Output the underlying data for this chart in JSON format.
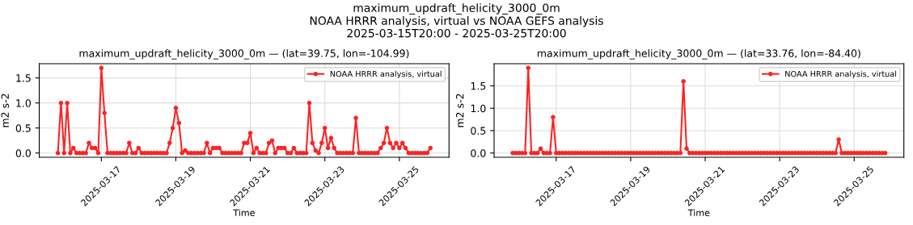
{
  "chart_data": [
    {
      "type": "line",
      "title": "maximum_updraft_helicity_3000_0m — (lat=39.75, lon=-104.99)",
      "xlabel": "Time",
      "ylabel": "m2 s-2",
      "annotations": [
        "maximum_updraft_helicity_3000_0m\nNOAA HRRR analysis, virtual vs NOAA GEFS analysis\n2025-03-15T20:00 - 2025-03-25T20:00"
      ],
      "x": [
        "2025-03-15T20:00",
        "2025-03-15T22:00",
        "2025-03-16T00:00",
        "2025-03-16T02:00",
        "2025-03-16T04:00",
        "2025-03-16T06:00",
        "2025-03-16T08:00",
        "2025-03-16T10:00",
        "2025-03-16T12:00",
        "2025-03-16T14:00",
        "2025-03-16T16:00",
        "2025-03-16T18:00",
        "2025-03-16T20:00",
        "2025-03-16T22:00",
        "2025-03-17T00:00",
        "2025-03-17T02:00",
        "2025-03-17T04:00",
        "2025-03-17T06:00",
        "2025-03-17T08:00",
        "2025-03-17T10:00",
        "2025-03-17T12:00",
        "2025-03-17T14:00",
        "2025-03-17T16:00",
        "2025-03-17T18:00",
        "2025-03-17T20:00",
        "2025-03-17T22:00",
        "2025-03-18T00:00",
        "2025-03-18T02:00",
        "2025-03-18T04:00",
        "2025-03-18T06:00",
        "2025-03-18T08:00",
        "2025-03-18T10:00",
        "2025-03-18T12:00",
        "2025-03-18T14:00",
        "2025-03-18T16:00",
        "2025-03-18T18:00",
        "2025-03-18T20:00",
        "2025-03-18T22:00",
        "2025-03-19T00:00",
        "2025-03-19T02:00",
        "2025-03-19T04:00",
        "2025-03-19T06:00",
        "2025-03-19T08:00",
        "2025-03-19T10:00",
        "2025-03-19T12:00",
        "2025-03-19T14:00",
        "2025-03-19T16:00",
        "2025-03-19T18:00",
        "2025-03-19T20:00",
        "2025-03-19T22:00",
        "2025-03-20T00:00",
        "2025-03-20T02:00",
        "2025-03-20T04:00",
        "2025-03-20T06:00",
        "2025-03-20T08:00",
        "2025-03-20T10:00",
        "2025-03-20T12:00",
        "2025-03-20T14:00",
        "2025-03-20T16:00",
        "2025-03-20T18:00",
        "2025-03-20T20:00",
        "2025-03-20T22:00",
        "2025-03-21T00:00",
        "2025-03-21T02:00",
        "2025-03-21T04:00",
        "2025-03-21T06:00",
        "2025-03-21T08:00",
        "2025-03-21T10:00",
        "2025-03-21T12:00",
        "2025-03-21T14:00",
        "2025-03-21T16:00",
        "2025-03-21T18:00",
        "2025-03-21T20:00",
        "2025-03-21T22:00",
        "2025-03-22T00:00",
        "2025-03-22T02:00",
        "2025-03-22T04:00",
        "2025-03-22T06:00",
        "2025-03-22T08:00",
        "2025-03-22T10:00",
        "2025-03-22T12:00",
        "2025-03-22T14:00",
        "2025-03-22T16:00",
        "2025-03-22T18:00",
        "2025-03-22T20:00",
        "2025-03-22T22:00",
        "2025-03-23T00:00",
        "2025-03-23T02:00",
        "2025-03-23T04:00",
        "2025-03-23T06:00",
        "2025-03-23T08:00",
        "2025-03-23T10:00",
        "2025-03-23T12:00",
        "2025-03-23T14:00",
        "2025-03-23T16:00",
        "2025-03-23T18:00",
        "2025-03-23T20:00",
        "2025-03-23T22:00",
        "2025-03-24T00:00",
        "2025-03-24T02:00",
        "2025-03-24T04:00",
        "2025-03-24T06:00",
        "2025-03-24T08:00",
        "2025-03-24T10:00",
        "2025-03-24T12:00",
        "2025-03-24T14:00",
        "2025-03-24T16:00",
        "2025-03-24T18:00",
        "2025-03-24T20:00",
        "2025-03-24T22:00",
        "2025-03-25T00:00",
        "2025-03-25T02:00",
        "2025-03-25T04:00",
        "2025-03-25T06:00",
        "2025-03-25T08:00",
        "2025-03-25T10:00",
        "2025-03-25T12:00",
        "2025-03-25T14:00",
        "2025-03-25T16:00",
        "2025-03-25T18:00",
        "2025-03-25T20:00"
      ],
      "series": [
        {
          "name": "NOAA HRRR analysis, virtual",
          "color": "#ff2222",
          "values": [
            0,
            1.0,
            0,
            1.0,
            0,
            0.1,
            0,
            0,
            0,
            0,
            0.2,
            0.1,
            0.1,
            0,
            1.7,
            0.8,
            0,
            0,
            0,
            0,
            0,
            0,
            0,
            0.2,
            0,
            0,
            0.1,
            0,
            0,
            0,
            0,
            0,
            0,
            0,
            0,
            0,
            0.2,
            0.5,
            0.9,
            0.6,
            0,
            0.05,
            0,
            0,
            0,
            0,
            0,
            0,
            0.2,
            0,
            0.1,
            0.1,
            0.1,
            0,
            0,
            0,
            0,
            0,
            0,
            0,
            0.2,
            0.2,
            0.4,
            0,
            0.1,
            0,
            0,
            0,
            0.2,
            0.25,
            0,
            0.1,
            0.1,
            0.1,
            0,
            0,
            0.1,
            0,
            0,
            0,
            0,
            1.0,
            0.2,
            0.05,
            0,
            0.2,
            0.5,
            0.1,
            0.3,
            0.1,
            0,
            0,
            0,
            0,
            0,
            0,
            0.7,
            0,
            0,
            0,
            0,
            0,
            0,
            0,
            0.1,
            0.2,
            0.5,
            0.2,
            0.1,
            0.2,
            0.1,
            0.2,
            0.1,
            0,
            0,
            0,
            0,
            0,
            0,
            0,
            0.1
          ]
        }
      ],
      "xlim": [
        "2025-03-15T08:00",
        "2025-03-26T08:00"
      ],
      "xticks": [
        "2025-03-17",
        "2025-03-19",
        "2025-03-21",
        "2025-03-23",
        "2025-03-25"
      ],
      "ylim": [
        -0.085,
        1.785
      ],
      "yticks": [
        {
          "value": 0,
          "label": "0.0"
        },
        {
          "value": 0.5,
          "label": "0.5"
        },
        {
          "value": 1.0,
          "label": "1.0"
        },
        {
          "value": 1.5,
          "label": "1.5"
        }
      ],
      "grid": true,
      "legend": "top right",
      "marker": "circle",
      "line_style": "solid"
    },
    {
      "type": "line",
      "title": "maximum_updraft_helicity_3000_0m — (lat=33.76, lon=-84.40)",
      "xlabel": "Time",
      "ylabel": "m2 s-2",
      "x": [
        "2025-03-15T20:00",
        "2025-03-15T22:00",
        "2025-03-16T00:00",
        "2025-03-16T02:00",
        "2025-03-16T04:00",
        "2025-03-16T06:00",
        "2025-03-16T08:00",
        "2025-03-16T10:00",
        "2025-03-16T12:00",
        "2025-03-16T14:00",
        "2025-03-16T16:00",
        "2025-03-16T18:00",
        "2025-03-16T20:00",
        "2025-03-16T22:00",
        "2025-03-17T00:00",
        "2025-03-17T02:00",
        "2025-03-17T04:00",
        "2025-03-17T06:00",
        "2025-03-17T08:00",
        "2025-03-17T10:00",
        "2025-03-17T12:00",
        "2025-03-17T14:00",
        "2025-03-17T16:00",
        "2025-03-17T18:00",
        "2025-03-17T20:00",
        "2025-03-17T22:00",
        "2025-03-18T00:00",
        "2025-03-18T02:00",
        "2025-03-18T04:00",
        "2025-03-18T06:00",
        "2025-03-18T08:00",
        "2025-03-18T10:00",
        "2025-03-18T12:00",
        "2025-03-18T14:00",
        "2025-03-18T16:00",
        "2025-03-18T18:00",
        "2025-03-18T20:00",
        "2025-03-18T22:00",
        "2025-03-19T00:00",
        "2025-03-19T02:00",
        "2025-03-19T04:00",
        "2025-03-19T06:00",
        "2025-03-19T08:00",
        "2025-03-19T10:00",
        "2025-03-19T12:00",
        "2025-03-19T14:00",
        "2025-03-19T16:00",
        "2025-03-19T18:00",
        "2025-03-19T20:00",
        "2025-03-19T22:00",
        "2025-03-20T00:00",
        "2025-03-20T02:00",
        "2025-03-20T04:00",
        "2025-03-20T06:00",
        "2025-03-20T08:00",
        "2025-03-20T10:00",
        "2025-03-20T12:00",
        "2025-03-20T14:00",
        "2025-03-20T16:00",
        "2025-03-20T18:00",
        "2025-03-20T20:00",
        "2025-03-20T22:00",
        "2025-03-21T00:00",
        "2025-03-21T02:00",
        "2025-03-21T04:00",
        "2025-03-21T06:00",
        "2025-03-21T08:00",
        "2025-03-21T10:00",
        "2025-03-21T12:00",
        "2025-03-21T14:00",
        "2025-03-21T16:00",
        "2025-03-21T18:00",
        "2025-03-21T20:00",
        "2025-03-21T22:00",
        "2025-03-22T00:00",
        "2025-03-22T02:00",
        "2025-03-22T04:00",
        "2025-03-22T06:00",
        "2025-03-22T08:00",
        "2025-03-22T10:00",
        "2025-03-22T12:00",
        "2025-03-22T14:00",
        "2025-03-22T16:00",
        "2025-03-22T18:00",
        "2025-03-22T20:00",
        "2025-03-22T22:00",
        "2025-03-23T00:00",
        "2025-03-23T02:00",
        "2025-03-23T04:00",
        "2025-03-23T06:00",
        "2025-03-23T08:00",
        "2025-03-23T10:00",
        "2025-03-23T12:00",
        "2025-03-23T14:00",
        "2025-03-23T16:00",
        "2025-03-23T18:00",
        "2025-03-23T20:00",
        "2025-03-23T22:00",
        "2025-03-24T00:00",
        "2025-03-24T02:00",
        "2025-03-24T04:00",
        "2025-03-24T06:00",
        "2025-03-24T08:00",
        "2025-03-24T10:00",
        "2025-03-24T12:00",
        "2025-03-24T14:00",
        "2025-03-24T16:00",
        "2025-03-24T18:00",
        "2025-03-24T20:00",
        "2025-03-24T22:00",
        "2025-03-25T00:00",
        "2025-03-25T02:00",
        "2025-03-25T04:00",
        "2025-03-25T06:00",
        "2025-03-25T08:00",
        "2025-03-25T10:00",
        "2025-03-25T12:00",
        "2025-03-25T14:00",
        "2025-03-25T16:00",
        "2025-03-25T18:00",
        "2025-03-25T20:00"
      ],
      "series": [
        {
          "name": "NOAA HRRR analysis, virtual",
          "color": "#ff2222",
          "values": [
            0,
            0,
            0,
            0,
            0,
            1.9,
            0,
            0,
            0,
            0.1,
            0,
            0,
            0,
            0.8,
            0,
            0,
            0,
            0,
            0,
            0,
            0,
            0,
            0,
            0,
            0,
            0,
            0,
            0,
            0,
            0,
            0,
            0,
            0,
            0,
            0,
            0,
            0,
            0,
            0,
            0,
            0,
            0,
            0,
            0,
            0,
            0,
            0,
            0,
            0,
            0,
            0,
            0,
            0,
            0,
            0,
            1.6,
            0.1,
            0,
            0,
            0,
            0,
            0,
            0,
            0,
            0,
            0,
            0,
            0,
            0,
            0,
            0,
            0,
            0,
            0,
            0,
            0,
            0,
            0,
            0,
            0,
            0,
            0,
            0,
            0,
            0,
            0,
            0,
            0,
            0,
            0,
            0,
            0,
            0,
            0,
            0,
            0,
            0,
            0,
            0,
            0,
            0,
            0,
            0,
            0,
            0,
            0.3,
            0,
            0,
            0,
            0,
            0,
            0,
            0,
            0,
            0,
            0,
            0,
            0,
            0,
            0,
            0
          ]
        }
      ],
      "xlim": [
        "2025-03-15T08:00",
        "2025-03-26T08:00"
      ],
      "xticks": [
        "2025-03-17",
        "2025-03-19",
        "2025-03-21",
        "2025-03-23",
        "2025-03-25"
      ],
      "ylim": [
        -0.095,
        1.995
      ],
      "yticks": [
        {
          "value": 0,
          "label": "0.0"
        },
        {
          "value": 0.5,
          "label": "0.5"
        },
        {
          "value": 1.0,
          "label": "1.0"
        },
        {
          "value": 1.5,
          "label": "1.5"
        }
      ],
      "grid": true,
      "legend": "top right",
      "marker": "circle",
      "line_style": "solid"
    }
  ]
}
